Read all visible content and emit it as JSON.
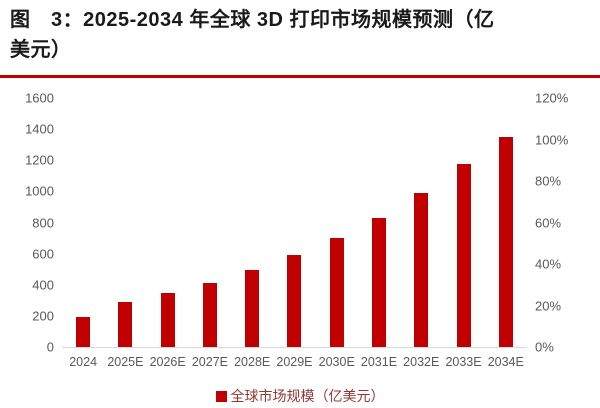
{
  "figure": {
    "title_line1": "图　3：2025-2034 年全球 3D 打印市场规模预测（亿",
    "title_line2": "美元）"
  },
  "legend": {
    "marker": "red-square",
    "label": "全球市场规模（亿美元）"
  },
  "colors": {
    "bar": "#c00000",
    "title_rule": "#c00000",
    "axis_text": "#595959",
    "axis_line": "#d9d9d9",
    "legend_text": "#963634",
    "title_text": "#1a1a1a"
  },
  "chart_data": {
    "type": "bar",
    "title": "2025-2034 年全球 3D 打印市场规模预测（亿美元）",
    "categories": [
      "2024",
      "2025E",
      "2026E",
      "2027E",
      "2028E",
      "2029E",
      "2030E",
      "2031E",
      "2032E",
      "2033E",
      "2034E"
    ],
    "series": [
      {
        "name": "全球市场规模（亿美元）",
        "axis": "left",
        "values": [
          195,
          290,
          345,
          410,
          495,
          590,
          700,
          830,
          990,
          1175,
          1350
        ]
      }
    ],
    "xlabel": "",
    "ylabel": "",
    "left_axis": {
      "min": 0,
      "max": 1600,
      "step": 200,
      "ticks": [
        "0",
        "200",
        "400",
        "600",
        "800",
        "1000",
        "1200",
        "1400",
        "1600"
      ]
    },
    "right_axis": {
      "min": 0,
      "max": 1.2,
      "ticks": [
        "0%",
        "20%",
        "40%",
        "60%",
        "80%",
        "100%",
        "120%"
      ]
    },
    "grid": false,
    "legend_position": "bottom"
  }
}
